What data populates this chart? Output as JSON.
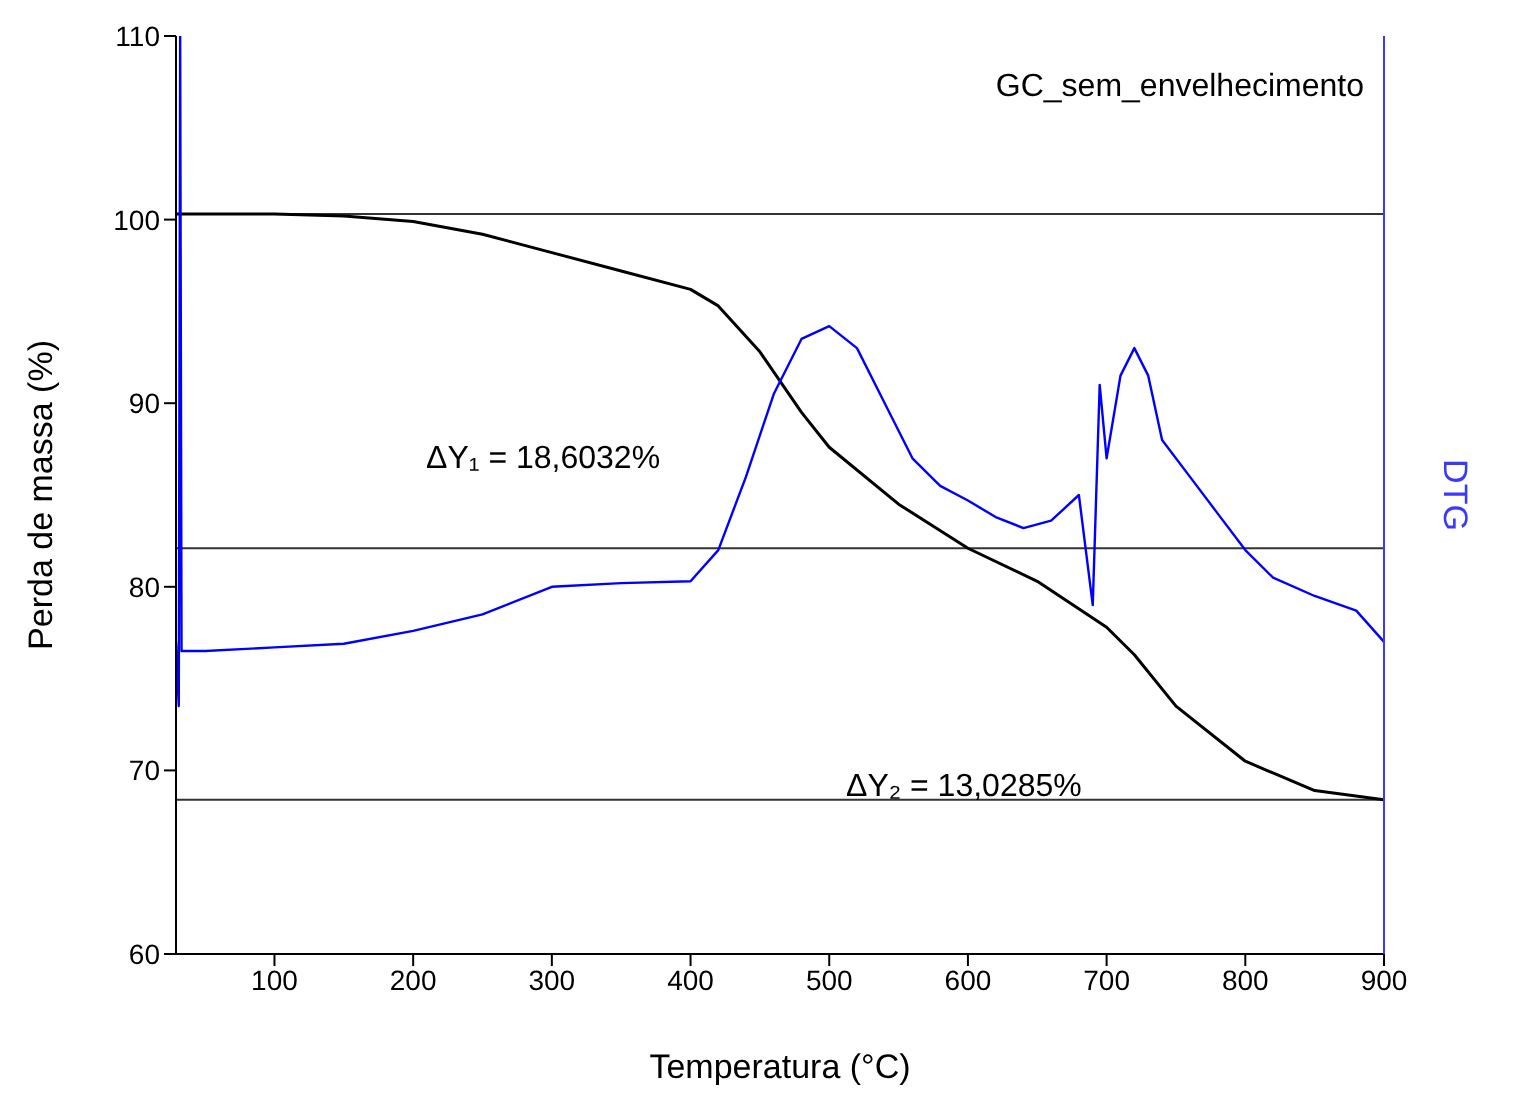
{
  "chart_data": {
    "type": "line",
    "xlabel": "Temperatura (°C)",
    "ylabel": "Perda de massa (%)",
    "y2label": "DTG",
    "xlim": [
      29,
      900
    ],
    "xticks": [
      100,
      200,
      300,
      400,
      500,
      600,
      700,
      800,
      900
    ],
    "ylim": [
      60,
      110
    ],
    "yticks": [
      60,
      70,
      80,
      90,
      100,
      110
    ],
    "grid": false,
    "legend": false,
    "marker": "none",
    "line_style": "solid",
    "annotations": [
      "GC_sem_envelhecimento",
      "ΔY₁ = 18,6032%",
      "ΔY₂ = 13,0285%"
    ],
    "ref_lines": [
      {
        "axis": "y",
        "value": 100.3,
        "color": "#333333"
      },
      {
        "axis": "y",
        "value": 82.1,
        "color": "#333333"
      },
      {
        "axis": "y",
        "value": 68.4,
        "color": "#333333"
      }
    ],
    "series": [
      {
        "color": "#000000",
        "x": [
          29,
          100,
          150,
          200,
          250,
          300,
          350,
          400,
          420,
          450,
          480,
          500,
          550,
          600,
          650,
          700,
          720,
          750,
          800,
          850,
          900
        ],
        "values": [
          100.3,
          100.3,
          100.2,
          99.9,
          99.2,
          98.2,
          97.2,
          96.2,
          95.3,
          92.8,
          89.5,
          87.6,
          84.5,
          82.1,
          80.3,
          77.8,
          76.3,
          73.5,
          70.5,
          68.9,
          68.4
        ]
      },
      {
        "color": "#0000ff",
        "x": [
          29,
          31,
          32,
          33,
          50,
          100,
          150,
          200,
          250,
          300,
          350,
          400,
          420,
          440,
          460,
          480,
          500,
          520,
          540,
          560,
          580,
          600,
          620,
          640,
          660,
          680,
          690,
          695,
          700,
          710,
          720,
          730,
          740,
          760,
          780,
          800,
          820,
          850,
          880,
          900
        ],
        "values": [
          77,
          73.5,
          110,
          76.5,
          76.5,
          76.7,
          76.9,
          77.6,
          78.5,
          80,
          80.2,
          80.3,
          82,
          86,
          90.5,
          93.5,
          94.2,
          93,
          90,
          87,
          85.5,
          84.7,
          83.8,
          83.2,
          83.6,
          85,
          79,
          91,
          87,
          91.5,
          93,
          91.5,
          88,
          86,
          84,
          82,
          80.5,
          79.5,
          78.7,
          77
        ]
      }
    ]
  }
}
